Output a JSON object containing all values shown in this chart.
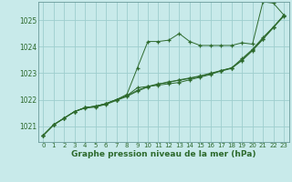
{
  "bg_color": "#c8eaea",
  "grid_color": "#9ecece",
  "line_color": "#2d6a2d",
  "xlabel": "Graphe pression niveau de la mer (hPa)",
  "xlim": [
    -0.5,
    23.5
  ],
  "ylim": [
    1020.4,
    1025.7
  ],
  "yticks": [
    1021,
    1022,
    1023,
    1024,
    1025
  ],
  "xticks": [
    0,
    1,
    2,
    3,
    4,
    5,
    6,
    7,
    8,
    9,
    10,
    11,
    12,
    13,
    14,
    15,
    16,
    17,
    18,
    19,
    20,
    21,
    22,
    23
  ],
  "series": [
    [
      1020.65,
      1021.05,
      1021.3,
      1021.55,
      1021.7,
      1021.75,
      1021.85,
      1022.0,
      1022.2,
      1023.2,
      1024.2,
      1024.2,
      1024.25,
      1024.5,
      1024.2,
      1024.05,
      1024.05,
      1024.05,
      1024.05,
      1024.15,
      1024.1,
      1025.7,
      1025.65,
      1025.2
    ],
    [
      1020.65,
      1021.05,
      1021.3,
      1021.55,
      1021.7,
      1021.75,
      1021.85,
      1022.0,
      1022.15,
      1022.45,
      1022.5,
      1022.55,
      1022.6,
      1022.65,
      1022.75,
      1022.85,
      1022.95,
      1023.1,
      1023.2,
      1023.55,
      1023.9,
      1024.35,
      1024.75,
      1025.15
    ],
    [
      1020.65,
      1021.05,
      1021.3,
      1021.55,
      1021.7,
      1021.75,
      1021.85,
      1022.0,
      1022.15,
      1022.35,
      1022.5,
      1022.6,
      1022.65,
      1022.75,
      1022.82,
      1022.9,
      1023.0,
      1023.1,
      1023.2,
      1023.5,
      1023.88,
      1024.3,
      1024.75,
      1025.2
    ],
    [
      1020.65,
      1021.05,
      1021.3,
      1021.55,
      1021.68,
      1021.72,
      1021.82,
      1021.97,
      1022.12,
      1022.32,
      1022.48,
      1022.58,
      1022.68,
      1022.73,
      1022.8,
      1022.88,
      1022.98,
      1023.08,
      1023.18,
      1023.48,
      1023.85,
      1024.28,
      1024.72,
      1025.18
    ]
  ]
}
